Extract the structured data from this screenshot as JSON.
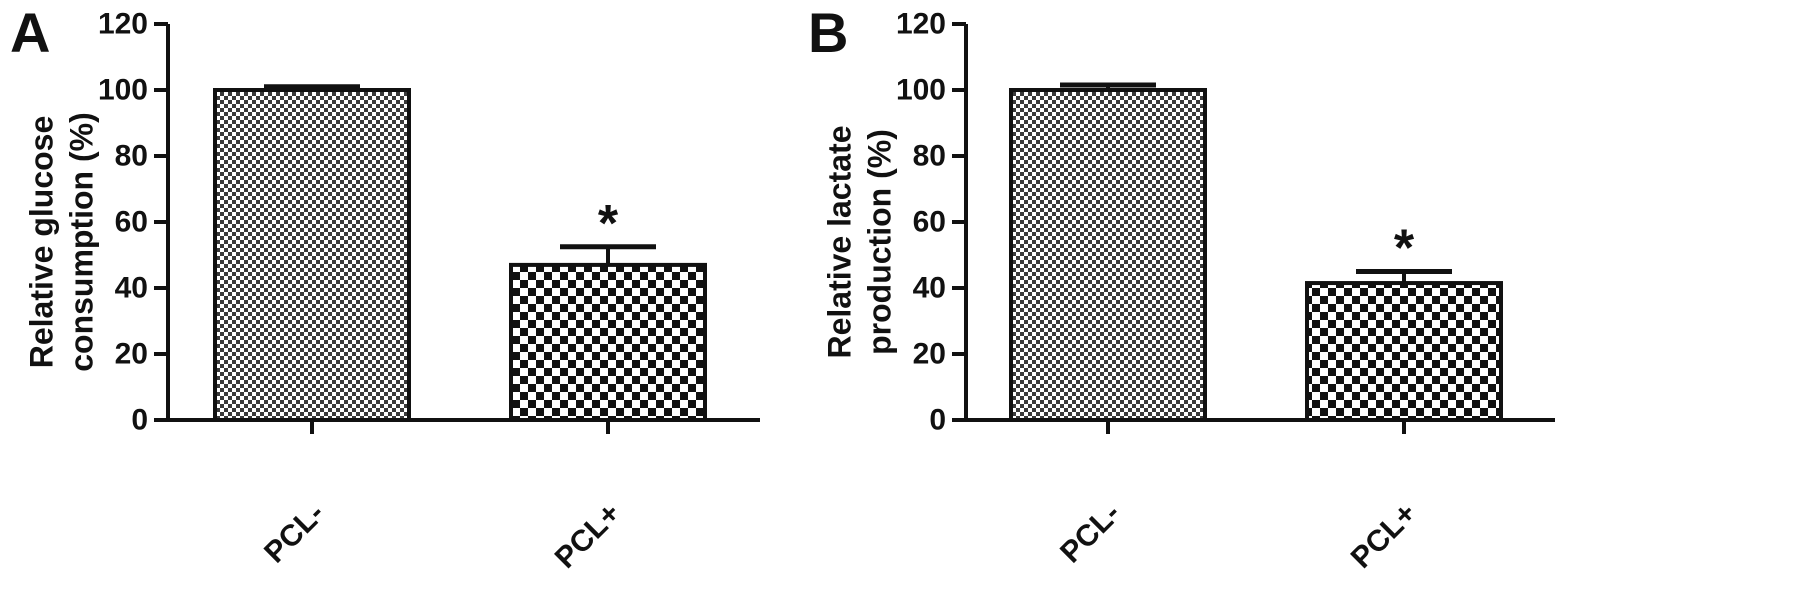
{
  "chart_data": [
    {
      "type": "bar",
      "panel": "A",
      "ylabel_lines": [
        "Relative glucose",
        "consumption (%)"
      ],
      "categories": [
        "PCL-",
        "PCL+"
      ],
      "values": [
        100,
        47
      ],
      "errors": [
        1,
        5.5
      ],
      "patterns": [
        "fine-check",
        "coarse-check"
      ],
      "annotations": [
        "",
        "*"
      ],
      "ylim": [
        0,
        120
      ],
      "yticks": [
        "0",
        "20",
        "40",
        "60",
        "80",
        "100",
        "120"
      ],
      "grid": false
    },
    {
      "type": "bar",
      "panel": "B",
      "ylabel_lines": [
        "Relative lactate",
        "production (%)"
      ],
      "categories": [
        "PCL-",
        "PCL+"
      ],
      "values": [
        100,
        41.5
      ],
      "errors": [
        1.5,
        3.5
      ],
      "patterns": [
        "fine-check",
        "coarse-check"
      ],
      "annotations": [
        "",
        "*"
      ],
      "ylim": [
        0,
        120
      ],
      "yticks": [
        "0",
        "20",
        "40",
        "60",
        "80",
        "100",
        "120"
      ],
      "grid": false
    }
  ]
}
